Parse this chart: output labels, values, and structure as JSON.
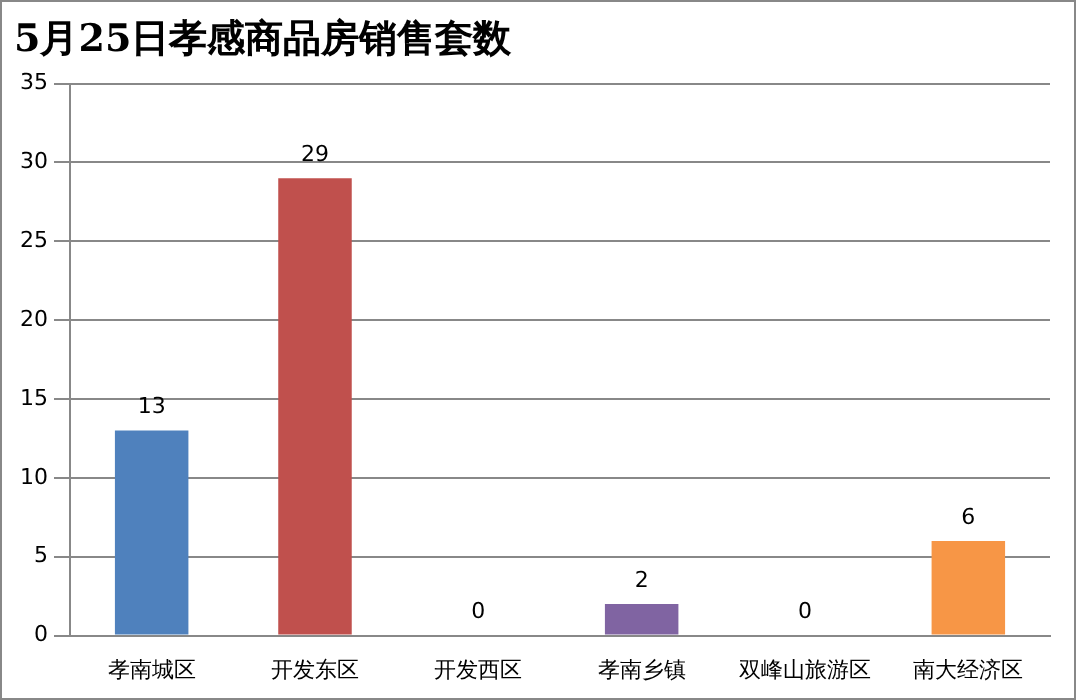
{
  "chart_data": {
    "type": "bar",
    "title": "5月25日孝感商品房销售套数",
    "categories": [
      "孝南城区",
      "开发东区",
      "开发西区",
      "孝南乡镇",
      "双峰山旅游区",
      "南大经济区"
    ],
    "values": [
      13,
      29,
      0,
      2,
      0,
      6
    ],
    "colors": [
      "#4f81bd",
      "#c0504d",
      "#9bbb59",
      "#8064a2",
      "#4bacc6",
      "#f79646"
    ],
    "ylim": [
      0,
      35
    ],
    "yticks": [
      0,
      5,
      10,
      15,
      20,
      25,
      30,
      35
    ],
    "grid": "y",
    "legend": false,
    "data_labels": true
  }
}
